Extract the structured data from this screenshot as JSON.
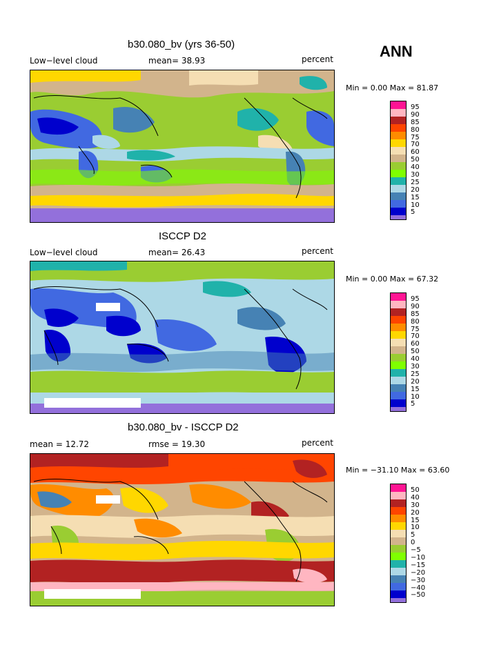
{
  "season": "ANN",
  "palette_colors": [
    "#ff1493",
    "#ffb6c1",
    "#b22222",
    "#ff4500",
    "#ff8c00",
    "#ffd700",
    "#f5deb3",
    "#d2b48c",
    "#9acd32",
    "#7fff00",
    "#20b2aa",
    "#add8e6",
    "#4682b4",
    "#4169e1",
    "#0000cd",
    "#9370db"
  ],
  "panels": [
    {
      "title": "b30.080_bv (yrs 36-50)",
      "left_label": "Low−level cloud",
      "mid_label": "mean=  38.93",
      "unit": "percent",
      "minmax": "Min =   0.00 Max =  81.87",
      "levels": [
        "95",
        "90",
        "85",
        "80",
        "75",
        "70",
        "60",
        "50",
        "40",
        "30",
        "25",
        "20",
        "15",
        "10",
        "5"
      ]
    },
    {
      "title": "ISCCP D2",
      "left_label": "Low−level cloud",
      "mid_label": "mean=  26.43",
      "unit": "percent",
      "minmax": "Min =   0.00 Max =  67.32",
      "levels": [
        "95",
        "90",
        "85",
        "80",
        "75",
        "70",
        "60",
        "50",
        "40",
        "30",
        "25",
        "20",
        "15",
        "10",
        "5"
      ]
    },
    {
      "title": "b30.080_bv - ISCCP D2",
      "left_label": "mean =  12.72",
      "mid_label": "rmse =  19.30",
      "unit": "percent",
      "minmax": "Min = −31.10 Max =  63.60",
      "levels": [
        "50",
        "40",
        "30",
        "20",
        "15",
        "10",
        "5",
        "0",
        "−5",
        "−10",
        "−15",
        "−20",
        "−30",
        "−40",
        "−50"
      ]
    }
  ]
}
